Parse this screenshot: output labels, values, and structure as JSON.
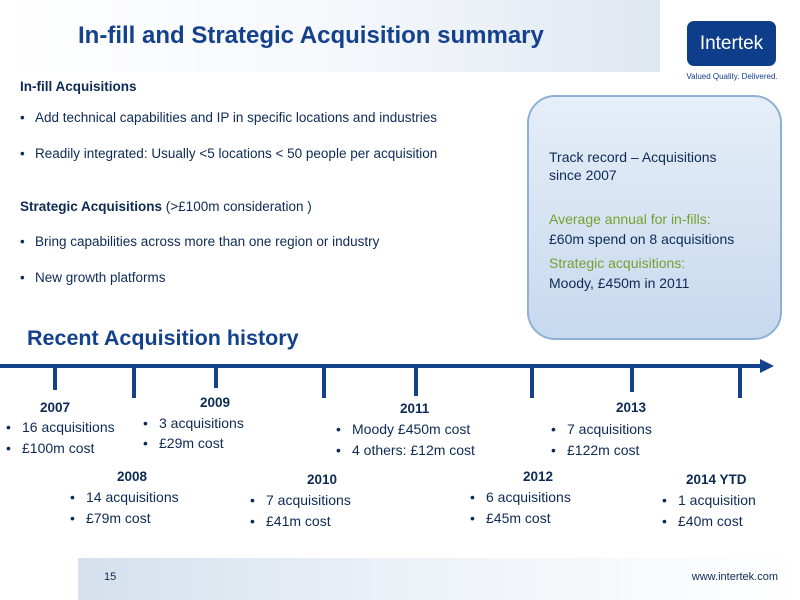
{
  "header": {
    "title": "In-fill and Strategic Acquisition summary",
    "logo_text": "Intertek",
    "logo_tagline": "Valued Quality. Delivered."
  },
  "infill": {
    "heading": "In-fill Acquisitions",
    "bullets": [
      "Add technical capabilities and IP in specific locations and industries",
      "Readily integrated: Usually <5 locations < 50 people per acquisition"
    ]
  },
  "strategic": {
    "heading": "Strategic Acquisitions",
    "heading_suffix": "(>£100m consideration )",
    "bullets": [
      "Bring capabilities across more than one region or industry",
      "New growth platforms"
    ]
  },
  "track_record": {
    "line1": "Track record – Acquisitions",
    "line2": "since 2007",
    "avg_label": "Average annual for in-fills:",
    "avg_value": "£60m spend on 8 acquisitions",
    "strat_label": "Strategic acquisitions:",
    "strat_value": "Moody, £450m in 2011"
  },
  "history": {
    "title": "Recent Acquisition history",
    "years": [
      {
        "year": "2007",
        "items": [
          "16 acquisitions",
          "£100m cost"
        ]
      },
      {
        "year": "2008",
        "items": [
          "14 acquisitions",
          "£79m cost"
        ]
      },
      {
        "year": "2009",
        "items": [
          "3 acquisitions",
          "£29m cost"
        ]
      },
      {
        "year": "2010",
        "items": [
          "7 acquisitions",
          "£41m cost"
        ]
      },
      {
        "year": "2011",
        "items": [
          "Moody £450m cost",
          "4 others: £12m cost"
        ]
      },
      {
        "year": "2012",
        "items": [
          "6 acquisitions",
          "£45m cost"
        ]
      },
      {
        "year": "2013",
        "items": [
          "7 acquisitions",
          "£122m cost"
        ]
      },
      {
        "year": "2014 YTD",
        "items": [
          "1 acquisition",
          "£40m cost"
        ]
      }
    ]
  },
  "footer": {
    "page_number": "15",
    "url": "www.intertek.com"
  },
  "colors": {
    "brand_blue": "#14418b",
    "logo_blue": "#0e3e8a",
    "text_navy": "#0d2a55",
    "accent_green": "#78a030",
    "box_border": "#8eb0d6"
  }
}
